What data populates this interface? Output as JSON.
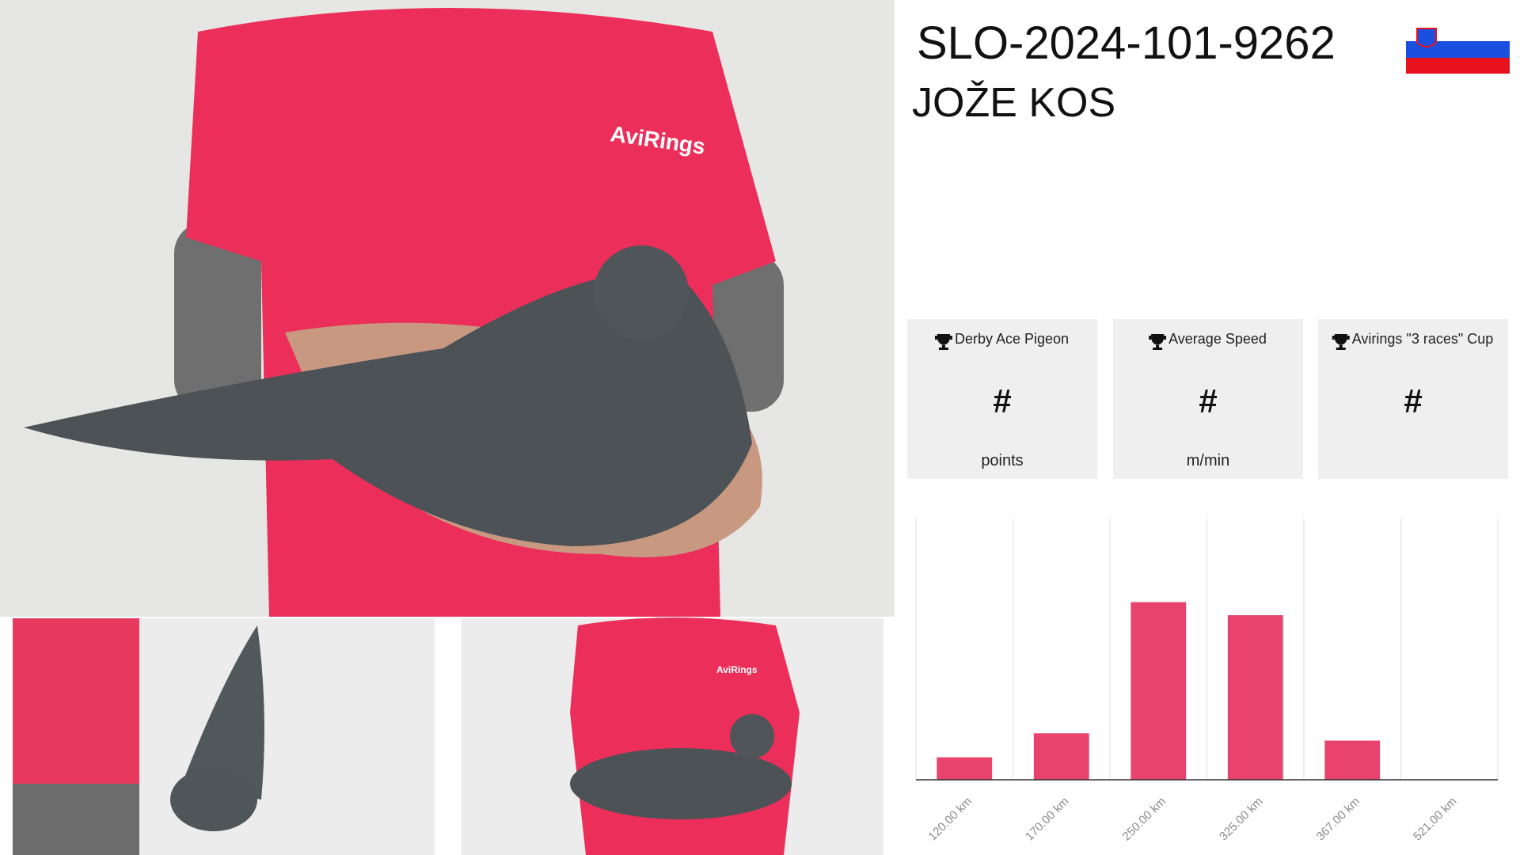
{
  "header": {
    "ring": "SLO-2024-101-9262",
    "owner": "JOŽE KOS"
  },
  "cards": [
    {
      "title": "Derby Ace Pigeon",
      "value": "#",
      "unit": "points"
    },
    {
      "title": "Average Speed",
      "value": "#",
      "unit": "m/min"
    },
    {
      "title": "Avirings \"3 races\" Cup",
      "value": "#"
    }
  ],
  "photo_text": "AviRings",
  "bar_chart": {
    "type": "bar",
    "categories": [
      "120.00 km",
      "170.00 km",
      "250.00 km",
      "325.00 km",
      "367.00 km",
      "521.00 km"
    ],
    "values": [
      8.6,
      17.8,
      68,
      63,
      15,
      0
    ],
    "color": "#e8436c",
    "ylim": [
      0,
      100
    ]
  }
}
